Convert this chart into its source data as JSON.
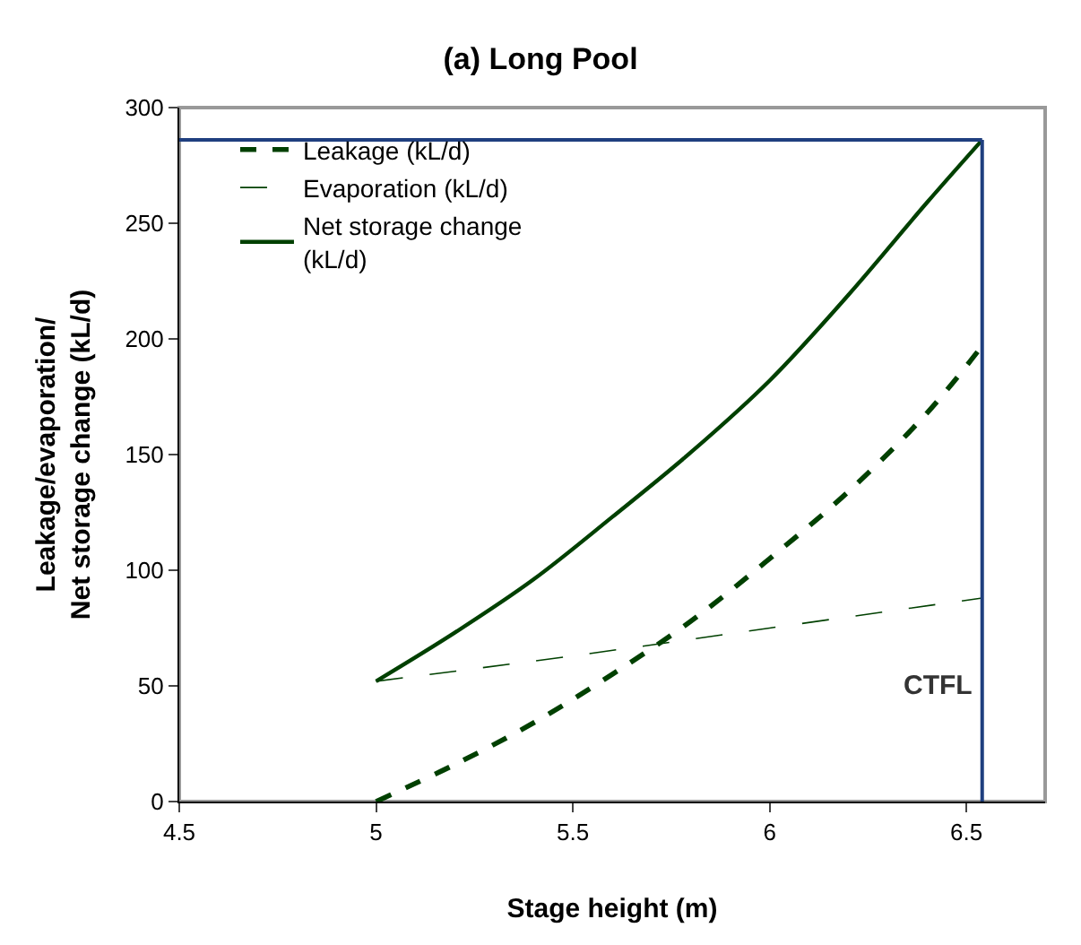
{
  "chart_data": {
    "type": "line",
    "title": "(a) Long Pool",
    "xlabel": "Stage height (m)",
    "ylabel": "Leakage/evaporation/\nNet storage change (kL/d)",
    "xlim": [
      4.5,
      6.7
    ],
    "xticks": [
      4.5,
      5,
      5.5,
      6,
      6.5
    ],
    "ylim": [
      0,
      300
    ],
    "yticks": [
      0,
      50,
      100,
      150,
      200,
      250,
      300
    ],
    "grid": false,
    "legend": "top left",
    "marker": "none",
    "series": [
      {
        "name": "Leakage (kL/d)",
        "color": "#004000",
        "line_style": "dashed",
        "x": [
          5,
          5.2,
          5.4,
          5.6,
          5.8,
          6.0,
          6.2,
          6.4,
          6.54
        ],
        "values": [
          0,
          16,
          34,
          55,
          78,
          105,
          134,
          168,
          197
        ]
      },
      {
        "name": "Evaporation (kL/d)",
        "color": "#004000",
        "line_style": "longdash_thin",
        "x": [
          5,
          5.5,
          6,
          6.54
        ],
        "values": [
          52,
          63,
          75,
          88
        ]
      },
      {
        "name": "Net storage change\n(kL/d)",
        "color": "#004000",
        "line_style": "solid",
        "x": [
          5,
          5.2,
          5.4,
          5.6,
          5.8,
          6.0,
          6.2,
          6.4,
          6.54
        ],
        "values": [
          52,
          73,
          96,
          123,
          151,
          182,
          219,
          259,
          286
        ]
      }
    ],
    "ref_lines": [
      {
        "axis": "x",
        "value": 6.54,
        "label": "CTFL",
        "color": "#1f3f7f"
      },
      {
        "axis": "y",
        "value": 286,
        "label": null,
        "color": "#1f3f7f"
      }
    ]
  }
}
